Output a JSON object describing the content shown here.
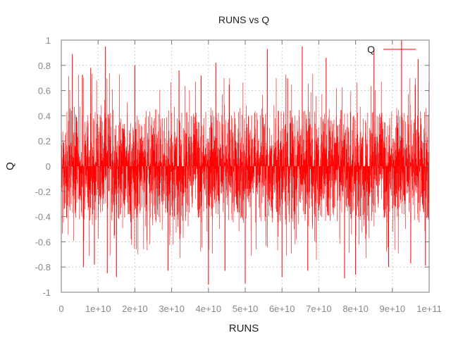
{
  "chart_data": {
    "type": "line",
    "title": "RUNS vs Q",
    "xlabel": "RUNS",
    "ylabel": "Q",
    "xlim": [
      0,
      100000000000
    ],
    "ylim": [
      -1,
      1
    ],
    "grid": true,
    "legend_position": "top-right",
    "x_ticks": [
      "0",
      "1e+10",
      "2e+10",
      "3e+10",
      "4e+10",
      "5e+10",
      "6e+10",
      "7e+10",
      "8e+10",
      "9e+10",
      "1e+11"
    ],
    "y_ticks": [
      "-1",
      "-0.8",
      "-0.6",
      "-0.4",
      "-0.2",
      "0",
      "0.2",
      "0.4",
      "0.6",
      "0.8",
      "1"
    ],
    "series": [
      {
        "name": "Q",
        "color": "#ff0000",
        "style": "impulse",
        "typical_range": [
          -0.45,
          0.45
        ],
        "x_extremes": [
          3000000000,
          6000000000,
          8000000000,
          9000000000,
          12000000000,
          12500000000,
          15000000000,
          20000000000,
          29000000000,
          32000000000,
          38000000000,
          40000000000,
          42000000000,
          44500000000,
          50000000000,
          56000000000,
          60000000000,
          65500000000,
          67000000000,
          72000000000,
          77000000000,
          80000000000,
          85000000000,
          89000000000,
          92500000000,
          95000000000,
          97000000000,
          99000000000
        ],
        "y_extremes": [
          0.89,
          -0.8,
          0.78,
          -0.78,
          0.95,
          -0.85,
          -0.88,
          0.8,
          -0.83,
          0.76,
          0.72,
          -0.94,
          0.82,
          -0.83,
          -0.93,
          0.93,
          -0.88,
          0.95,
          -0.83,
          0.86,
          -0.89,
          -0.86,
          0.92,
          -0.8,
          1.0,
          -0.77,
          0.85,
          -0.79
        ]
      }
    ]
  }
}
